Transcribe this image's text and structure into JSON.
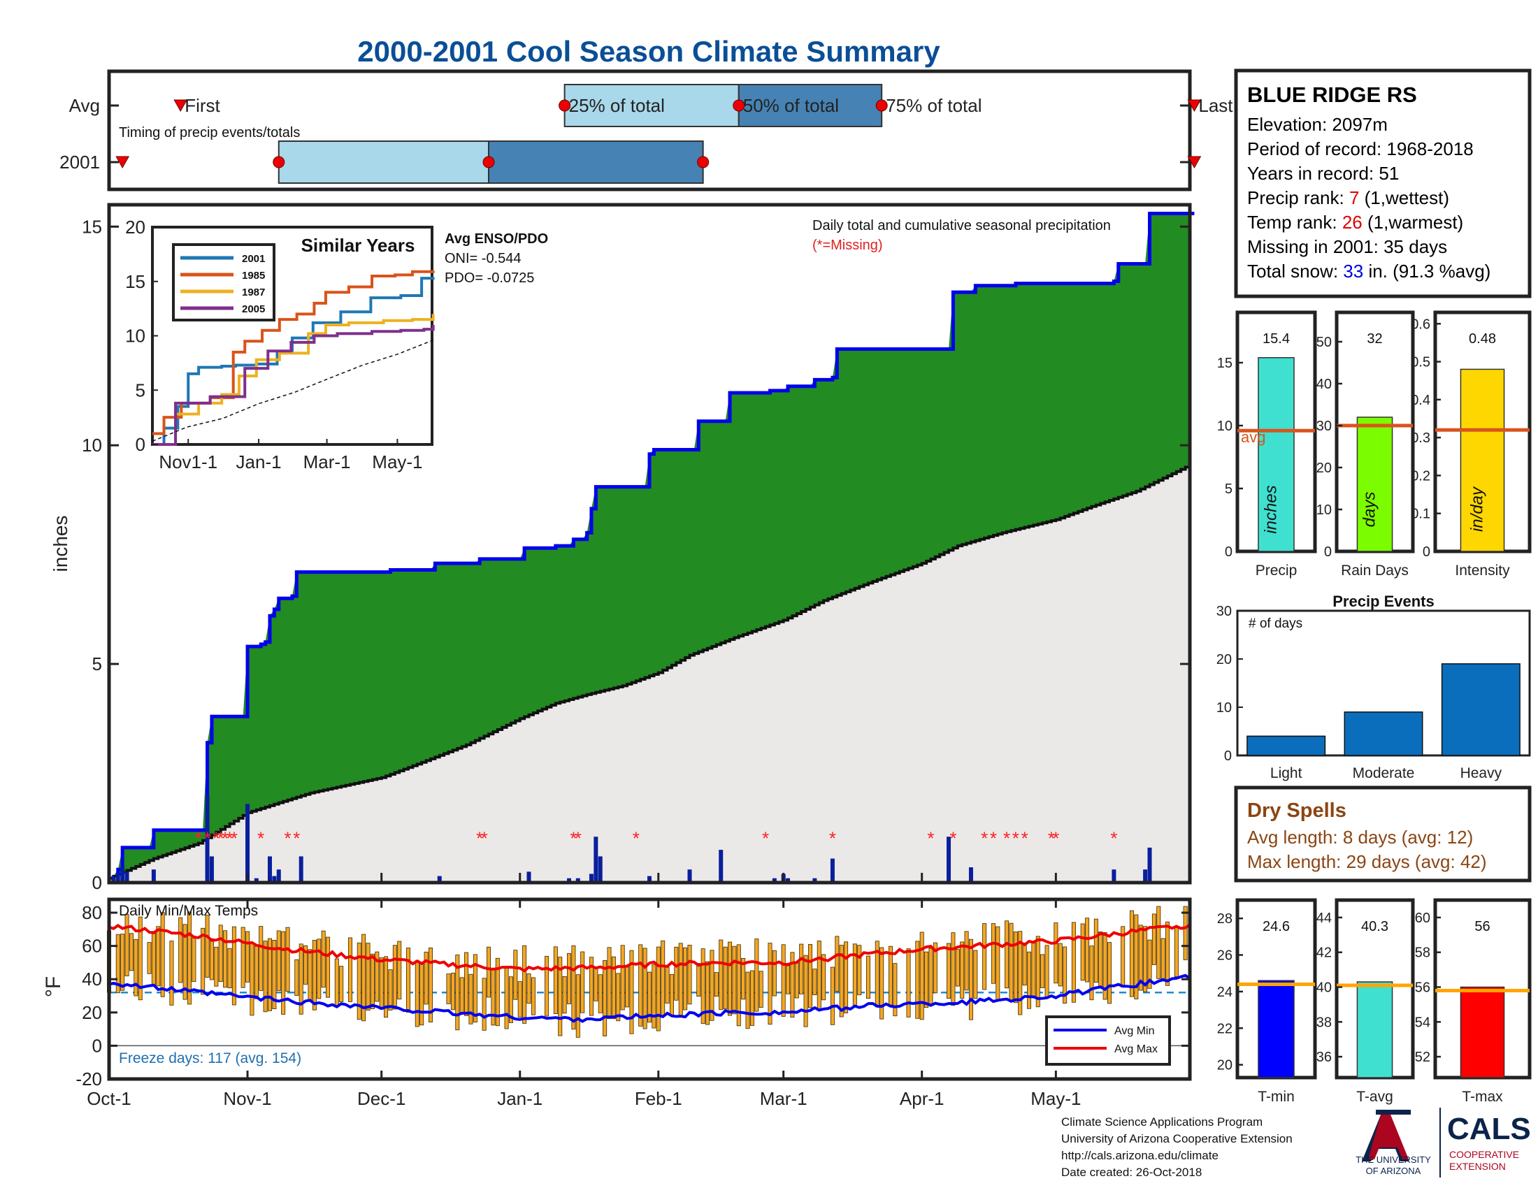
{
  "title": "2000-2001 Cool Season Climate Summary",
  "timing": {
    "label": "Timing of precip events/totals",
    "row_labels": [
      "Avg",
      "2001"
    ],
    "first_label": "First",
    "last_label": "Last",
    "pct_labels": [
      "25% of total",
      "50% of total",
      "75% of total"
    ],
    "avg": {
      "first_day": 16,
      "p25": 102,
      "p50": 141,
      "p75": 173,
      "last_day": 243
    },
    "year": {
      "first_day": 3,
      "p25": 38,
      "p50": 85,
      "p75": 133,
      "last_day": 243
    }
  },
  "station": {
    "name": "BLUE RIDGE RS",
    "elevation_label": "Elevation: 2097m",
    "period_label": "Period of record: 1968-2018",
    "years_label": "Years in record: 51",
    "precip_rank_prefix": "Precip rank: ",
    "precip_rank": "7",
    "precip_rank_suffix": " (1,wettest)",
    "temp_rank_prefix": "Temp rank: ",
    "temp_rank": "26",
    "temp_rank_suffix": " (1,warmest)",
    "missing_label": "Missing in 2001: 35 days",
    "snow_prefix": "Total snow: ",
    "snow_value": "33",
    "snow_suffix": " in. (91.3 %avg)"
  },
  "precip_panel": {
    "ylabel": "inches",
    "yticks": [
      0,
      5,
      10,
      15
    ],
    "annotation": "Daily total and cumulative seasonal precipitation",
    "missing_note": "(*=Missing)",
    "enso_title": "Avg ENSO/PDO",
    "oni_label": "ONI= -0.544",
    "pdo_label": "PDO= -0.0725"
  },
  "chart_data": {
    "type": "area",
    "title": "Daily total and cumulative seasonal precipitation",
    "ylabel": "inches",
    "ylim": [
      0,
      15.5
    ],
    "xlim_days": [
      0,
      242
    ],
    "x_ticks": [
      {
        "day": 0,
        "label": "Oct-1"
      },
      {
        "day": 31,
        "label": "Nov-1"
      },
      {
        "day": 61,
        "label": "Dec-1"
      },
      {
        "day": 92,
        "label": "Jan-1"
      },
      {
        "day": 123,
        "label": "Feb-1"
      },
      {
        "day": 151,
        "label": "Mar-1"
      },
      {
        "day": 182,
        "label": "Apr-1"
      },
      {
        "day": 212,
        "label": "May-1"
      }
    ],
    "cumulative_2001": [
      [
        0,
        0
      ],
      [
        2,
        0.3
      ],
      [
        3,
        0.8
      ],
      [
        9,
        0.8
      ],
      [
        10,
        1.2
      ],
      [
        21,
        1.2
      ],
      [
        22,
        3.2
      ],
      [
        23,
        3.8
      ],
      [
        30,
        3.8
      ],
      [
        31,
        5.4
      ],
      [
        34,
        5.45
      ],
      [
        35,
        5.5
      ],
      [
        36,
        6.1
      ],
      [
        37,
        6.25
      ],
      [
        38,
        6.5
      ],
      [
        41,
        6.55
      ],
      [
        42,
        7.1
      ],
      [
        62,
        7.1
      ],
      [
        63,
        7.15
      ],
      [
        72,
        7.15
      ],
      [
        73,
        7.3
      ],
      [
        82,
        7.3
      ],
      [
        83,
        7.4
      ],
      [
        92,
        7.4
      ],
      [
        93,
        7.65
      ],
      [
        100,
        7.7
      ],
      [
        104,
        7.85
      ],
      [
        107,
        8.0
      ],
      [
        108,
        8.55
      ],
      [
        109,
        9.05
      ],
      [
        120,
        9.05
      ],
      [
        121,
        9.8
      ],
      [
        122,
        9.9
      ],
      [
        131,
        9.9
      ],
      [
        132,
        10.55
      ],
      [
        138,
        10.55
      ],
      [
        139,
        11.2
      ],
      [
        148,
        11.25
      ],
      [
        152,
        11.35
      ],
      [
        158,
        11.5
      ],
      [
        162,
        11.55
      ],
      [
        163,
        12.2
      ],
      [
        188,
        12.2
      ],
      [
        189,
        13.5
      ],
      [
        194,
        13.65
      ],
      [
        203,
        13.7
      ],
      [
        215,
        13.7
      ],
      [
        225,
        13.75
      ],
      [
        226,
        14.15
      ],
      [
        232,
        14.15
      ],
      [
        233,
        15.3
      ],
      [
        243,
        15.3
      ]
    ],
    "avg_cumulative": [
      [
        0,
        0.1
      ],
      [
        10,
        0.55
      ],
      [
        20,
        0.9
      ],
      [
        31,
        1.6
      ],
      [
        45,
        2.05
      ],
      [
        61,
        2.4
      ],
      [
        70,
        2.75
      ],
      [
        80,
        3.15
      ],
      [
        92,
        3.75
      ],
      [
        100,
        4.1
      ],
      [
        107,
        4.3
      ],
      [
        115,
        4.5
      ],
      [
        123,
        4.8
      ],
      [
        130,
        5.2
      ],
      [
        140,
        5.6
      ],
      [
        151,
        6.0
      ],
      [
        160,
        6.45
      ],
      [
        170,
        6.85
      ],
      [
        182,
        7.3
      ],
      [
        190,
        7.7
      ],
      [
        200,
        8.0
      ],
      [
        212,
        8.3
      ],
      [
        220,
        8.6
      ],
      [
        230,
        8.95
      ],
      [
        243,
        9.6
      ]
    ],
    "daily_bars": [
      [
        1,
        0.15
      ],
      [
        2,
        0.2
      ],
      [
        3,
        0.35
      ],
      [
        4,
        0.25
      ],
      [
        10,
        0.3
      ],
      [
        22,
        2.0
      ],
      [
        23,
        0.6
      ],
      [
        31,
        1.8
      ],
      [
        33,
        0.1
      ],
      [
        36,
        0.6
      ],
      [
        37,
        0.15
      ],
      [
        38,
        0.3
      ],
      [
        43,
        0.6
      ],
      [
        74,
        0.15
      ],
      [
        94,
        0.25
      ],
      [
        103,
        0.1
      ],
      [
        105,
        0.1
      ],
      [
        108,
        0.2
      ],
      [
        109,
        1.05
      ],
      [
        110,
        0.6
      ],
      [
        121,
        0.15
      ],
      [
        130,
        0.3
      ],
      [
        137,
        0.75
      ],
      [
        149,
        0.1
      ],
      [
        151,
        0.2
      ],
      [
        152,
        0.1
      ],
      [
        158,
        0.1
      ],
      [
        162,
        0.55
      ],
      [
        188,
        1.05
      ],
      [
        193,
        0.35
      ],
      [
        225,
        0.3
      ],
      [
        232,
        0.3
      ],
      [
        233,
        0.8
      ]
    ],
    "missing_days": [
      20,
      22,
      24,
      25,
      26,
      27,
      28,
      34,
      40,
      42,
      83,
      84,
      104,
      105,
      118,
      147,
      162,
      184,
      189,
      196,
      198,
      201,
      203,
      205,
      211,
      212,
      225
    ],
    "colors": {
      "cumulative_line": "#0000ee",
      "above_avg_fill": "#228b22",
      "avg_fill": "#ebe9e8",
      "daily_bar": "#0a1f9c",
      "missing": "#ff2020"
    }
  },
  "similar_years": {
    "title": "Similar Years",
    "legend": [
      "2001",
      "1985",
      "1987",
      "2005"
    ],
    "colors": [
      "#1f77b4",
      "#d95319",
      "#edb120",
      "#7e2f8e"
    ],
    "yticks": [
      0,
      5,
      10,
      15,
      20
    ],
    "xticks": [
      {
        "day": 31,
        "label": "Nov1-1"
      },
      {
        "day": 92,
        "label": "Jan-1"
      },
      {
        "day": 151,
        "label": "Mar-1"
      },
      {
        "day": 212,
        "label": "May-1"
      }
    ],
    "series": [
      [
        [
          0,
          0
        ],
        [
          10,
          1.5
        ],
        [
          22,
          3.5
        ],
        [
          31,
          6.5
        ],
        [
          40,
          7.1
        ],
        [
          60,
          7.2
        ],
        [
          72,
          7.3
        ],
        [
          90,
          7.4
        ],
        [
          108,
          8.5
        ],
        [
          121,
          9.8
        ],
        [
          139,
          11.2
        ],
        [
          163,
          12.2
        ],
        [
          189,
          13.5
        ],
        [
          215,
          13.7
        ],
        [
          233,
          15.3
        ],
        [
          243,
          15.4
        ]
      ],
      [
        [
          0,
          1
        ],
        [
          10,
          2.5
        ],
        [
          25,
          3.8
        ],
        [
          50,
          4.3
        ],
        [
          70,
          8.5
        ],
        [
          80,
          9.5
        ],
        [
          95,
          10.5
        ],
        [
          110,
          11.5
        ],
        [
          125,
          12.0
        ],
        [
          140,
          13.0
        ],
        [
          150,
          14.0
        ],
        [
          170,
          14.5
        ],
        [
          190,
          15.5
        ],
        [
          210,
          15.6
        ],
        [
          225,
          15.9
        ],
        [
          243,
          16.0
        ]
      ],
      [
        [
          0,
          0
        ],
        [
          20,
          2.8
        ],
        [
          40,
          3.8
        ],
        [
          60,
          4.6
        ],
        [
          75,
          6.3
        ],
        [
          90,
          7.8
        ],
        [
          110,
          8.4
        ],
        [
          135,
          10.2
        ],
        [
          150,
          11.0
        ],
        [
          170,
          11.2
        ],
        [
          200,
          11.4
        ],
        [
          225,
          11.5
        ],
        [
          243,
          12.0
        ]
      ],
      [
        [
          0,
          0
        ],
        [
          20,
          3.8
        ],
        [
          50,
          4.4
        ],
        [
          80,
          7.0
        ],
        [
          100,
          8.6
        ],
        [
          120,
          9.4
        ],
        [
          140,
          10.0
        ],
        [
          160,
          10.2
        ],
        [
          190,
          10.4
        ],
        [
          215,
          10.5
        ],
        [
          235,
          10.6
        ],
        [
          243,
          11.0
        ]
      ],
      [
        [
          0,
          0.3
        ],
        [
          30,
          1.6
        ],
        [
          61,
          2.4
        ],
        [
          92,
          3.75
        ],
        [
          123,
          4.8
        ],
        [
          151,
          6.0
        ],
        [
          182,
          7.3
        ],
        [
          212,
          8.3
        ],
        [
          243,
          9.6
        ]
      ]
    ]
  },
  "temp_panel": {
    "title": "Daily Min/Max Temps",
    "ylabel": "°F",
    "yticks": [
      -20,
      0,
      20,
      40,
      60,
      80
    ],
    "ylim": [
      -20,
      88
    ],
    "freeze_line": 32,
    "freeze_label": "Freeze days: 117 (avg. 154)",
    "legend": [
      "Avg Min",
      "Avg Max"
    ],
    "avg_max_knots": [
      [
        0,
        72
      ],
      [
        20,
        66
      ],
      [
        40,
        58
      ],
      [
        60,
        52
      ],
      [
        75,
        49
      ],
      [
        92,
        46
      ],
      [
        110,
        47
      ],
      [
        123,
        49
      ],
      [
        140,
        50
      ],
      [
        151,
        50
      ],
      [
        170,
        55
      ],
      [
        182,
        58
      ],
      [
        200,
        61
      ],
      [
        212,
        63
      ],
      [
        243,
        73
      ]
    ],
    "avg_min_knots": [
      [
        0,
        38
      ],
      [
        20,
        32
      ],
      [
        40,
        27
      ],
      [
        55,
        24
      ],
      [
        75,
        20
      ],
      [
        92,
        17
      ],
      [
        105,
        16
      ],
      [
        123,
        18
      ],
      [
        140,
        20
      ],
      [
        151,
        20
      ],
      [
        170,
        24
      ],
      [
        190,
        26
      ],
      [
        212,
        30
      ],
      [
        230,
        37
      ],
      [
        243,
        42
      ]
    ]
  },
  "stats_precip": {
    "avg_label": "avg",
    "panels": [
      {
        "label": "Precip",
        "unit": "inches",
        "value": 15.4,
        "value_label": "15.4",
        "avg": 9.6,
        "ylim": [
          0,
          19
        ],
        "yticks": [
          0,
          5,
          10,
          15
        ],
        "color": "#40e0d0"
      },
      {
        "label": "Rain Days",
        "unit": "days",
        "value": 32,
        "value_label": "32",
        "avg": 30,
        "ylim": [
          0,
          57
        ],
        "yticks": [
          0,
          10,
          20,
          30,
          40,
          50
        ],
        "color": "#7cfc00"
      },
      {
        "label": "Intensity",
        "unit": "in/day",
        "value": 0.48,
        "value_label": "0.48",
        "avg": 0.32,
        "ylim": [
          0,
          0.63
        ],
        "yticks": [
          0,
          0.1,
          0.2,
          0.3,
          0.4,
          0.5,
          0.6
        ],
        "color": "#ffd700"
      }
    ]
  },
  "precip_events": {
    "title": "Precip Events",
    "ylabel": "# of days",
    "categories": [
      "Light",
      "Moderate",
      "Heavy"
    ],
    "values": [
      4,
      9,
      19
    ],
    "ylim": [
      0,
      30
    ],
    "yticks": [
      0,
      10,
      20,
      30
    ],
    "color": "#0a6ebd"
  },
  "dry_spells": {
    "title": "Dry Spells",
    "avg_length": "Avg length: 8 days (avg: 12)",
    "max_length": "Max length: 29 days (avg: 42)"
  },
  "stats_temp": {
    "panels": [
      {
        "label": "T-min",
        "value": 24.6,
        "value_label": "24.6",
        "avg": 24.4,
        "ylim": [
          19.3,
          29
        ],
        "yticks": [
          20,
          22,
          24,
          26,
          28
        ],
        "color": "#0000ff"
      },
      {
        "label": "T-avg",
        "value": 40.3,
        "value_label": "40.3",
        "avg": 40.1,
        "ylim": [
          34.8,
          45
        ],
        "yticks": [
          36,
          38,
          40,
          42,
          44
        ],
        "color": "#40e0d0"
      },
      {
        "label": "T-max",
        "value": 56,
        "value_label": "56",
        "avg": 55.8,
        "ylim": [
          50.8,
          61
        ],
        "yticks": [
          52,
          54,
          56,
          58,
          60
        ],
        "color": "#ff0000"
      }
    ],
    "avg_line_color": "#ffa500"
  },
  "footer": {
    "line1": "Climate Science Applications Program",
    "line2": "University of Arizona Cooperative Extension",
    "line3": "http://cals.arizona.edu/climate",
    "line4": " Date created: 26-Oct-2018",
    "ua_line1": "THE UNIVERSITY",
    "ua_line2": "OF ARIZONA",
    "cals": "CALS",
    "coop1": "COOPERATIVE",
    "coop2": "EXTENSION"
  }
}
